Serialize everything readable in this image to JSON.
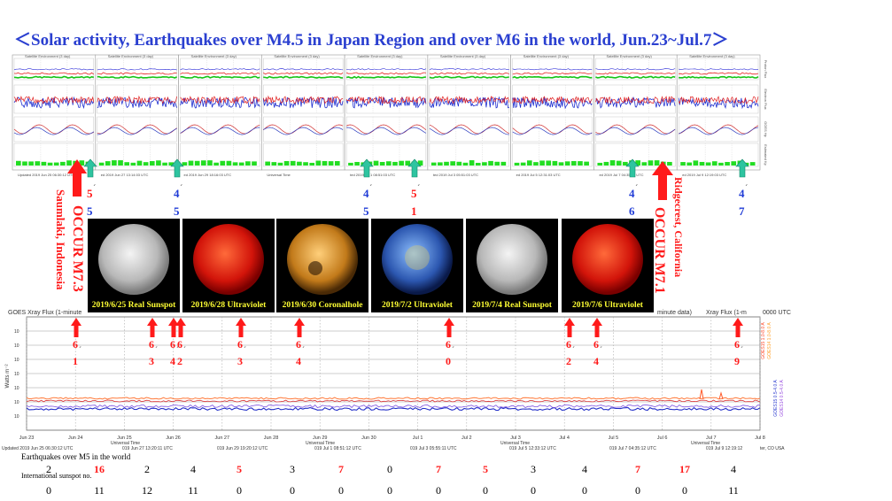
{
  "title": "＜Solar activity, Earthquakes over M4.5 in Japan Region and over M6 in the world, Jun.23~Jul.7＞",
  "colors": {
    "title": "#2a3fd0",
    "event_red": "#ff1a1a",
    "arrow_green": "#2ec4a0",
    "number_blue": "#1f3bd6"
  },
  "top_panel": {
    "panel_header": "Satellite Environment (3 day)",
    "footers": [
      "Updated 2019 Jun 25 06:30:12 UTC",
      "ed 2019 Jun 27 13:14:03 UTC",
      "ed 2019 Jun 29 18:16:03 UTC",
      "Universal Time",
      "ted 2019 Jul 1 08:51:03 UTC",
      "ted 2019 Jul 3 05:51:03 UTC",
      "ed 2019 Jul 5 12:31:03 UTC",
      "ed 2019 Jul 7 04:35:03 UTC",
      "ed 2019 Jul 9 12:19:03 UTC"
    ],
    "side_labels": [
      "Proton Flux",
      "Electron Flux",
      "GOES Hp",
      "Estimated Kp"
    ]
  },
  "japan_markers": [
    {
      "top": "5",
      "bottom": "5"
    },
    {
      "top": "4",
      "bottom": "5"
    },
    {
      "top": "4",
      "bottom": "5"
    },
    {
      "top": "5",
      "bottom": "1"
    },
    {
      "top": "4",
      "bottom": "6"
    },
    {
      "top": "4",
      "bottom": "7"
    }
  ],
  "big_events": [
    {
      "label": "OCCUR M7.3",
      "place": "Saumlaki, Indonesia"
    },
    {
      "label": "OCCUR M7.1",
      "place": "Ridgecrest, California"
    }
  ],
  "sun_images": [
    {
      "caption": "2019/6/25 Real Sunspot",
      "style": "white"
    },
    {
      "caption": "2019/6/28 Ultraviolet",
      "style": "red"
    },
    {
      "caption": "2019/6/30 Coronalhole",
      "style": "gold"
    },
    {
      "caption": "2019/7/2 Ultraviolet",
      "style": "blue"
    },
    {
      "caption": "2019/7/4 Real Sunspot",
      "style": "white"
    },
    {
      "caption": "2019/7/6 Ultraviolet",
      "style": "red"
    }
  ],
  "xray_panel": {
    "title_left": "GOES Xray Flux (1-minute",
    "title_right": "Xray Flux (1-m",
    "title_mid": "minute data)",
    "corner": "0000 UTC",
    "ylabel": "Watts m⁻²",
    "legend": [
      "GOES15 1.0-8.0 A",
      "GOES14 1.0-8.0 A",
      "GOES15 0.5-4.0 A",
      "GOES14 0.5-4.0 A"
    ],
    "dates": [
      "Jun 23",
      "Jun 24",
      "Jun 25",
      "Jun 26",
      "Jun 27",
      "Jun 28",
      "Jun 29",
      "Jun 30",
      "Jul 1",
      "Jul 2",
      "Jul 3",
      "Jul 4",
      "Jul 5",
      "Jul 6",
      "Jul 7",
      "Jul 8"
    ],
    "universal_time": "Universal Time",
    "updated": [
      "Updated 2019 Jun 25 06:30:12 UTC",
      "019 Jun 27 13:20:11 UTC",
      "019 Jun 29 19:20:12 UTC",
      "019 Jul 1 08:51:12 UTC",
      "019 Jul 3 05:55:11 UTC",
      "019 Jul 5 12:33:12 UTC",
      "019 Jul 7 04:35:12 UTC",
      "019 Jul 9 12:19:12",
      "ter, CO USA"
    ]
  },
  "m6_markers": [
    {
      "top": "6",
      "bottom": "1"
    },
    {
      "top": "6",
      "bottom": "3"
    },
    {
      "top": "6",
      "bottom": "4"
    },
    {
      "top": "6",
      "bottom": "2"
    },
    {
      "top": "6",
      "bottom": "3"
    },
    {
      "top": "6",
      "bottom": "4"
    },
    {
      "top": "6",
      "bottom": "0"
    },
    {
      "top": "6",
      "bottom": "2"
    },
    {
      "top": "6",
      "bottom": "4"
    },
    {
      "top": "6",
      "bottom": "9"
    }
  ],
  "table": {
    "row1_label": "Earthquakes over M5 in the world",
    "row2_label": "International sunspot no.",
    "earthquakes": [
      "2",
      "16",
      "2",
      "4",
      "5",
      "3",
      "7",
      "0",
      "7",
      "5",
      "3",
      "4",
      "7",
      "17",
      "4"
    ],
    "earthquake_highlight": [
      false,
      true,
      false,
      false,
      true,
      false,
      true,
      false,
      true,
      true,
      false,
      false,
      true,
      true,
      false
    ],
    "sunspots": [
      "0",
      "11",
      "12",
      "11",
      "0",
      "0",
      "0",
      "0",
      "0",
      "0",
      "0",
      "0",
      "0",
      "0",
      "11"
    ]
  },
  "chart_data": {
    "type": "table",
    "title": "＜Solar activity, Earthquakes over M4.5 in Japan Region and over M6 in the world, Jun.23~Jul.7＞",
    "series": [
      {
        "name": "Earthquakes over M5 in the world",
        "values": [
          2,
          16,
          2,
          4,
          5,
          3,
          7,
          0,
          7,
          5,
          3,
          4,
          7,
          17,
          4
        ]
      },
      {
        "name": "International sunspot no.",
        "values": [
          0,
          11,
          12,
          11,
          0,
          0,
          0,
          0,
          0,
          0,
          0,
          0,
          0,
          0,
          11
        ]
      }
    ]
  }
}
